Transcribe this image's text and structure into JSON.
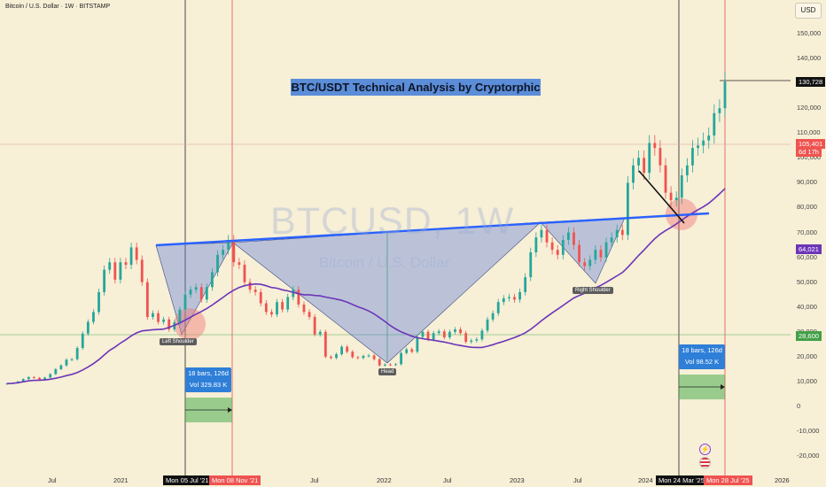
{
  "header": {
    "title": "Bitcoin / U.S. Dollar · 1W · BITSTAMP"
  },
  "currency_button": "USD",
  "watermark": {
    "symbol": "BTCUSD, 1W",
    "name": "Bitcoin / U.S. Dollar"
  },
  "banner": "BTC/USDT Technical Analysis by Cryptorphic",
  "annotations": {
    "left_shoulder": "Left Shoulder",
    "head": "Head",
    "right_shoulder": "Right Shoulder"
  },
  "measure_left": {
    "bars": "18 bars, 126d",
    "vol": "Vol 329.83 K"
  },
  "measure_right": {
    "bars": "18 bars, 126d",
    "vol": "Vol 98.52 K"
  },
  "price_badges": {
    "target": "130,728",
    "current": "105,401",
    "countdown": "6d 17h",
    "ma": "64,021",
    "neckline": "28,600"
  },
  "time_badges": [
    "Mon 05 Jul '21",
    "Mon 08 Nov '21",
    "Mon 24 Mar '25",
    "Mon 28 Jul '25"
  ],
  "colors": {
    "background": "#f7efd6",
    "neckline": "#2962ff",
    "ma": "#6c35b8",
    "up": "#26a69a",
    "down": "#ef5350",
    "banner": "#5b8dd8"
  },
  "chart_data": {
    "type": "candlestick",
    "ylabels": [
      "150,000",
      "140,000",
      "130,000",
      "120,000",
      "110,000",
      "100,000",
      "90,000",
      "80,000",
      "70,000",
      "60,000",
      "50,000",
      "40,000",
      "30,000",
      "20,000",
      "10,000",
      "0",
      "-10,000",
      "-20,000"
    ],
    "xlabels": [
      "Jul",
      "2021",
      "Jul",
      "2022",
      "Jul",
      "2023",
      "Jul",
      "2024",
      "Jul",
      "2025",
      "2026"
    ],
    "close_weekly": [
      9200,
      9400,
      10000,
      11000,
      11800,
      11500,
      10800,
      11600,
      13000,
      15000,
      16500,
      18800,
      19000,
      23500,
      29300,
      34000,
      38000,
      46000,
      55000,
      58000,
      51000,
      58000,
      57000,
      64000,
      59000,
      50000,
      36000,
      37500,
      34000,
      35000,
      31000,
      33800,
      39000,
      45000,
      47000,
      48000,
      43000,
      48000,
      54000,
      61000,
      63000,
      67000,
      58000,
      57000,
      50000,
      47000,
      46000,
      41500,
      38000,
      37000,
      42000,
      39000,
      44000,
      47000,
      41000,
      38000,
      36000,
      29000,
      30000,
      20000,
      19500,
      21000,
      24000,
      22000,
      19800,
      19500,
      20300,
      20500,
      19000,
      16500,
      16900,
      16800,
      17000,
      21500,
      23000,
      22000,
      28000,
      30000,
      27000,
      29500,
      30200,
      27800,
      30000,
      31000,
      29500,
      26000,
      26500,
      27000,
      30500,
      35000,
      37500,
      42000,
      43500,
      44000,
      43000,
      46000,
      52000,
      62000,
      68000,
      71000,
      66000,
      63000,
      61000,
      67000,
      70000,
      65000,
      58000,
      56500,
      59000,
      63000,
      60000,
      66000,
      68000,
      71000,
      69000,
      90000,
      97000,
      100000,
      94000,
      106000,
      104000,
      97000,
      86000,
      83000,
      84000,
      93000,
      97000,
      104000,
      105000,
      107000,
      109000,
      118000,
      120000,
      130728
    ]
  }
}
